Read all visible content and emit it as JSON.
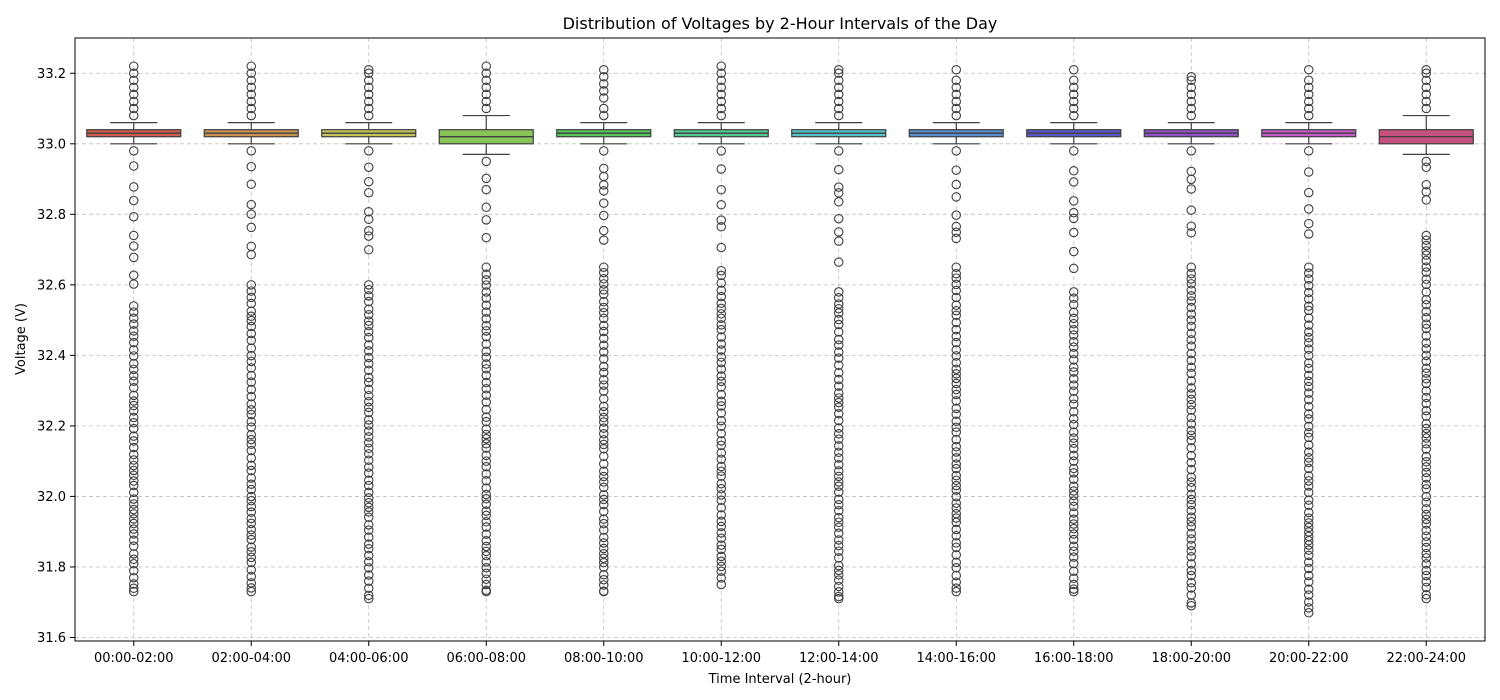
{
  "chart_data": {
    "type": "box",
    "title": "Distribution of Voltages by 2-Hour Intervals of the Day",
    "xlabel": "Time Interval (2-hour)",
    "ylabel": "Voltage (V)",
    "ylim": [
      31.59,
      33.3
    ],
    "yticks": [
      "31.6",
      "31.8",
      "32.0",
      "32.2",
      "32.4",
      "32.6",
      "32.8",
      "33.0",
      "33.2"
    ],
    "grid": true,
    "categories": [
      "00:00-02:00",
      "02:00-04:00",
      "04:00-06:00",
      "06:00-08:00",
      "08:00-10:00",
      "10:00-12:00",
      "12:00-14:00",
      "14:00-16:00",
      "16:00-18:00",
      "18:00-20:00",
      "20:00-22:00",
      "22:00-24:00"
    ],
    "colors": [
      "#cd5c4e",
      "#c89553",
      "#c4c45a",
      "#89c458",
      "#54c45c",
      "#55c891",
      "#55c4c9",
      "#5b8ecb",
      "#5b58c9",
      "#9052c6",
      "#c55bc8",
      "#c5517f"
    ],
    "boxes": [
      {
        "whisker_low": 33.0,
        "q1": 33.02,
        "median": 33.03,
        "q3": 33.04,
        "whisker_high": 33.06,
        "outliers_high": [
          33.08,
          33.1,
          33.12,
          33.14,
          33.16,
          33.18,
          33.2,
          33.22
        ],
        "outliers_low_top": 32.98,
        "outliers_low_dense_top": 32.54,
        "outliers_low_min": 31.73
      },
      {
        "whisker_low": 33.0,
        "q1": 33.02,
        "median": 33.03,
        "q3": 33.04,
        "whisker_high": 33.06,
        "outliers_high": [
          33.08,
          33.1,
          33.12,
          33.14,
          33.16,
          33.18,
          33.2,
          33.22
        ],
        "outliers_low_top": 32.98,
        "outliers_low_dense_top": 32.6,
        "outliers_low_min": 31.73
      },
      {
        "whisker_low": 33.0,
        "q1": 33.02,
        "median": 33.03,
        "q3": 33.04,
        "whisker_high": 33.06,
        "outliers_high": [
          33.08,
          33.1,
          33.12,
          33.14,
          33.16,
          33.18,
          33.2,
          33.21
        ],
        "outliers_low_top": 32.98,
        "outliers_low_dense_top": 32.6,
        "outliers_low_min": 31.71
      },
      {
        "whisker_low": 32.97,
        "q1": 33.0,
        "median": 33.02,
        "q3": 33.04,
        "whisker_high": 33.08,
        "outliers_high": [
          33.1,
          33.12,
          33.14,
          33.16,
          33.18,
          33.2,
          33.22
        ],
        "outliers_low_top": 32.95,
        "outliers_low_dense_top": 32.65,
        "outliers_low_min": 31.73
      },
      {
        "whisker_low": 33.0,
        "q1": 33.02,
        "median": 33.03,
        "q3": 33.04,
        "whisker_high": 33.06,
        "outliers_high": [
          33.08,
          33.1,
          33.13,
          33.15,
          33.17,
          33.19,
          33.21
        ],
        "outliers_low_top": 32.98,
        "outliers_low_dense_top": 32.65,
        "outliers_low_min": 31.73
      },
      {
        "whisker_low": 33.0,
        "q1": 33.02,
        "median": 33.03,
        "q3": 33.04,
        "whisker_high": 33.06,
        "outliers_high": [
          33.08,
          33.1,
          33.12,
          33.14,
          33.16,
          33.18,
          33.2,
          33.22
        ],
        "outliers_low_top": 32.98,
        "outliers_low_dense_top": 32.64,
        "outliers_low_min": 31.75
      },
      {
        "whisker_low": 33.0,
        "q1": 33.02,
        "median": 33.03,
        "q3": 33.04,
        "whisker_high": 33.06,
        "outliers_high": [
          33.08,
          33.1,
          33.12,
          33.14,
          33.16,
          33.18,
          33.2,
          33.21
        ],
        "outliers_low_top": 32.98,
        "outliers_low_dense_top": 32.58,
        "outliers_low_min": 31.71
      },
      {
        "whisker_low": 33.0,
        "q1": 33.02,
        "median": 33.03,
        "q3": 33.04,
        "whisker_high": 33.06,
        "outliers_high": [
          33.08,
          33.1,
          33.12,
          33.14,
          33.16,
          33.18,
          33.21
        ],
        "outliers_low_top": 32.98,
        "outliers_low_dense_top": 32.65,
        "outliers_low_min": 31.73
      },
      {
        "whisker_low": 33.0,
        "q1": 33.02,
        "median": 33.03,
        "q3": 33.04,
        "whisker_high": 33.06,
        "outliers_high": [
          33.08,
          33.1,
          33.12,
          33.14,
          33.16,
          33.18,
          33.21
        ],
        "outliers_low_top": 32.98,
        "outliers_low_dense_top": 32.58,
        "outliers_low_min": 31.73
      },
      {
        "whisker_low": 33.0,
        "q1": 33.02,
        "median": 33.03,
        "q3": 33.04,
        "whisker_high": 33.06,
        "outliers_high": [
          33.08,
          33.1,
          33.12,
          33.14,
          33.16,
          33.18,
          33.19
        ],
        "outliers_low_top": 32.98,
        "outliers_low_dense_top": 32.65,
        "outliers_low_min": 31.69
      },
      {
        "whisker_low": 33.0,
        "q1": 33.02,
        "median": 33.03,
        "q3": 33.04,
        "whisker_high": 33.06,
        "outliers_high": [
          33.08,
          33.1,
          33.12,
          33.14,
          33.16,
          33.18,
          33.21
        ],
        "outliers_low_top": 32.98,
        "outliers_low_dense_top": 32.65,
        "outliers_low_min": 31.67
      },
      {
        "whisker_low": 32.97,
        "q1": 33.0,
        "median": 33.02,
        "q3": 33.04,
        "whisker_high": 33.08,
        "outliers_high": [
          33.1,
          33.12,
          33.14,
          33.16,
          33.18,
          33.2,
          33.21
        ],
        "outliers_low_top": 32.95,
        "outliers_low_dense_top": 32.74,
        "outliers_low_min": 31.71
      }
    ]
  }
}
